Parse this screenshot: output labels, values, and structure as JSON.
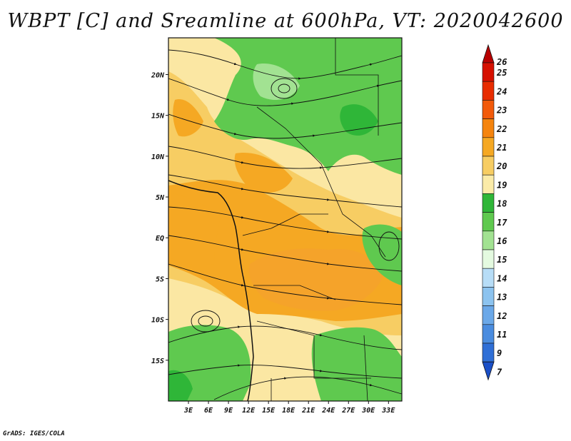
{
  "title": "WBPT [C] and Sreamline at 600hPa, VT: 2020042600",
  "footer": "GrADS: IGES/COLA",
  "map": {
    "lon_range": [
      0,
      35
    ],
    "lat_range": [
      -20,
      24.5
    ],
    "lat_ticks": [
      "20N",
      "15N",
      "10N",
      "5N",
      "EQ",
      "5S",
      "10S",
      "15S"
    ],
    "lon_ticks": [
      "3E",
      "6E",
      "9E",
      "12E",
      "15E",
      "18E",
      "21E",
      "24E",
      "27E",
      "30E",
      "33E"
    ]
  },
  "colorbar": {
    "labels": [
      "26",
      "25",
      "24",
      "23",
      "22",
      "21",
      "20",
      "19",
      "18",
      "17",
      "16",
      "15",
      "14",
      "13",
      "12",
      "11",
      "9",
      "7"
    ],
    "colors": [
      "#b80000",
      "#d61000",
      "#e82c00",
      "#f25a0a",
      "#f5840e",
      "#f5a823",
      "#f7cd63",
      "#fbeba8",
      "#2fb638",
      "#5fc94f",
      "#a2e292",
      "#e4fae0",
      "#b7ddf7",
      "#8cc3ef",
      "#6ba8e8",
      "#4a8cdf",
      "#2f6fd6",
      "#1a4fc7"
    ]
  }
}
